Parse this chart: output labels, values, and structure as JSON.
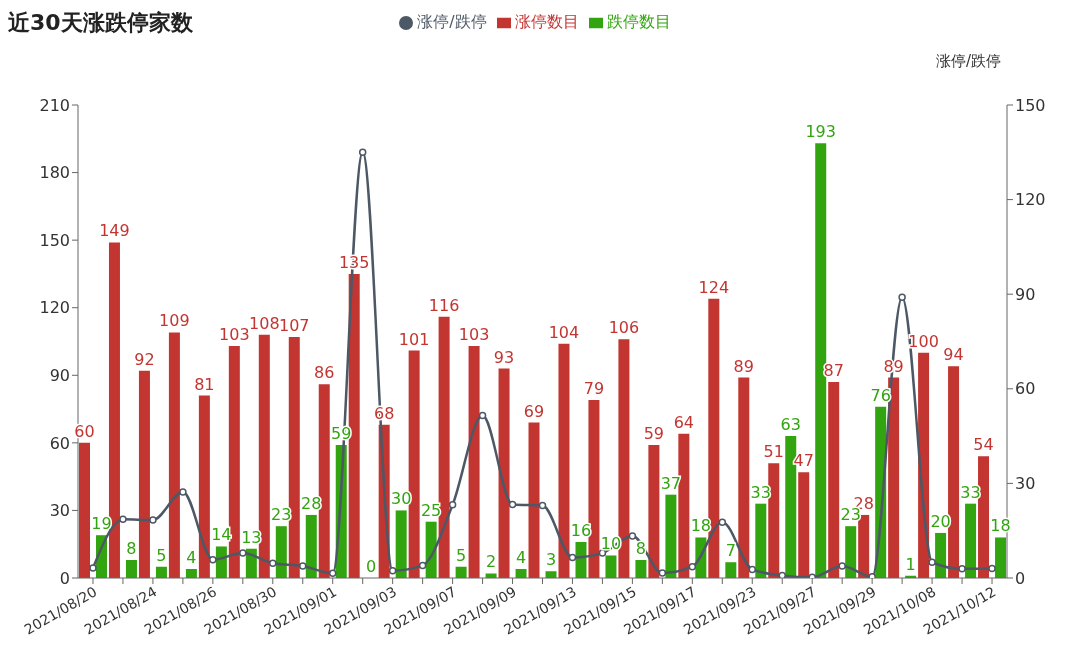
{
  "chart_data": {
    "type": "bar",
    "title": "近30天涨跌停家数",
    "y2label": "涨停/跌停",
    "categories": [
      "2021/08/20",
      null,
      "2021/08/24",
      null,
      "2021/08/26",
      null,
      "2021/08/30",
      null,
      "2021/09/01",
      null,
      "2021/09/03",
      null,
      "2021/09/07",
      null,
      "2021/09/09",
      null,
      "2021/09/13",
      null,
      "2021/09/15",
      null,
      "2021/09/17",
      null,
      "2021/09/23",
      null,
      "2021/09/27",
      null,
      "2021/09/29",
      null,
      "2021/10/08",
      null,
      "2021/10/12"
    ],
    "series": [
      {
        "name": "涨停数目",
        "color": "#c23531",
        "data_labels": true,
        "values": [
          60,
          149,
          92,
          109,
          81,
          103,
          108,
          107,
          86,
          135,
          68,
          101,
          116,
          103,
          93,
          69,
          104,
          79,
          106,
          59,
          64,
          124,
          89,
          51,
          47,
          87,
          28,
          89,
          100,
          94,
          54
        ]
      },
      {
        "name": "跌停数目",
        "color": "#32a40f",
        "data_labels": true,
        "values": [
          19,
          8,
          5,
          4,
          14,
          13,
          23,
          28,
          59,
          0,
          30,
          25,
          5,
          2,
          4,
          3,
          16,
          10,
          8,
          37,
          18,
          7,
          33,
          63,
          193,
          23,
          76,
          1,
          20,
          33,
          18
        ]
      },
      {
        "name": "涨停/跌停",
        "type": "line",
        "axis": "y2",
        "color": "#4d5866",
        "marker": "circle",
        "line_style": "solid",
        "values": [
          3.2,
          18.6,
          18.4,
          27.3,
          5.8,
          7.9,
          4.7,
          3.8,
          1.5,
          135,
          2.3,
          4.0,
          23.2,
          51.5,
          23.3,
          23,
          6.5,
          7.9,
          13.3,
          1.6,
          3.6,
          17.7,
          2.7,
          0.8,
          0.2,
          3.8,
          0.4,
          89,
          5,
          2.9,
          3
        ]
      }
    ],
    "ylim": [
      0,
      210
    ],
    "yticks": [
      0,
      30,
      60,
      90,
      120,
      150,
      180,
      210
    ],
    "y2lim": [
      0,
      150
    ],
    "y2ticks": [
      0,
      30,
      60,
      90,
      120,
      150
    ],
    "grid": false,
    "legend": "top"
  }
}
